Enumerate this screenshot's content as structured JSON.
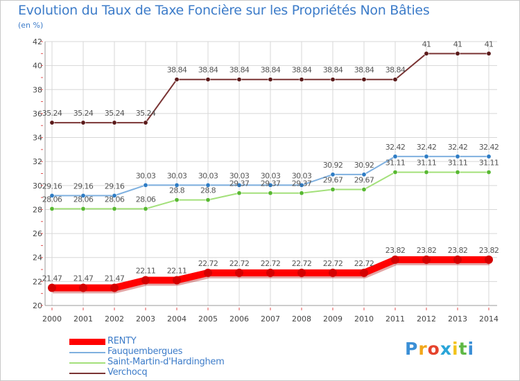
{
  "header": {
    "title": "Evolution du Taux de Taxe Foncière sur les Propriétés Non Bâties",
    "unit": "(en %)"
  },
  "logo": {
    "letters": [
      "P",
      "r",
      "o",
      "x",
      "i",
      "t",
      "i"
    ],
    "colors": [
      "#3b8fd6",
      "#f2a71b",
      "#e5432d",
      "#2aa5d8",
      "#f2c31b",
      "#5fb845",
      "#3b8fd6"
    ]
  },
  "chart_data": {
    "type": "line",
    "title": "Evolution du Taux de Taxe Foncière sur les Propriétés Non Bâties",
    "ylabel": "(en %)",
    "xlabel": "",
    "categories": [
      "2000",
      "2001",
      "2002",
      "2003",
      "2004",
      "2005",
      "2006",
      "2007",
      "2008",
      "2009",
      "2010",
      "2011",
      "2012",
      "2013",
      "2014"
    ],
    "ylim": [
      20,
      42
    ],
    "yticks": [
      "20",
      "22",
      "24",
      "26",
      "28",
      "30",
      "32",
      "34",
      "36",
      "38",
      "40",
      "42"
    ],
    "grid": true,
    "legend_position": "bottom-left",
    "series": [
      {
        "name": "RENTY",
        "color": "#ff0000",
        "marker_color": "#d40000",
        "emphasis": true,
        "values": [
          21.47,
          21.47,
          21.47,
          22.11,
          22.11,
          22.72,
          22.72,
          22.72,
          22.72,
          22.72,
          22.72,
          23.82,
          23.82,
          23.82,
          23.82
        ],
        "labels": [
          "21.47",
          "21.47",
          "21.47",
          "22.11",
          "22.11",
          "22.72",
          "22.72",
          "22.72",
          "22.72",
          "22.72",
          "22.72",
          "23.82",
          "23.82",
          "23.82",
          "23.82"
        ]
      },
      {
        "name": "Fauquembergues",
        "color": "#7fb0df",
        "marker_color": "#2e7cc4",
        "emphasis": false,
        "values": [
          29.16,
          29.16,
          29.16,
          30.03,
          30.03,
          30.03,
          30.03,
          30.03,
          30.03,
          30.92,
          30.92,
          32.42,
          32.42,
          32.42,
          32.42
        ],
        "labels": [
          "29.16",
          "29.16",
          "29.16",
          "30.03",
          "30.03",
          "30.03",
          "30.03",
          "30.03",
          "30.03",
          "30.92",
          "30.92",
          "32.42",
          "32.42",
          "32.42",
          "32.42"
        ]
      },
      {
        "name": "Saint-Martin-d'Hardinghem",
        "color": "#a3e07a",
        "marker_color": "#58b832",
        "emphasis": false,
        "values": [
          28.06,
          28.06,
          28.06,
          28.06,
          28.8,
          28.8,
          29.37,
          29.37,
          29.37,
          29.67,
          29.67,
          31.11,
          31.11,
          31.11,
          31.11
        ],
        "labels": [
          "28.06",
          "28.06",
          "28.06",
          "28.06",
          "28.8",
          "28.8",
          "29.37",
          "29.37",
          "29.37",
          "29.67",
          "29.67",
          "31.11",
          "31.11",
          "31.11",
          "31.11"
        ]
      },
      {
        "name": "Verchocq",
        "color": "#7a3434",
        "marker_color": "#5a1a1a",
        "emphasis": false,
        "values": [
          35.24,
          35.24,
          35.24,
          35.24,
          38.84,
          38.84,
          38.84,
          38.84,
          38.84,
          38.84,
          38.84,
          38.84,
          41,
          41,
          41
        ],
        "labels": [
          "35.24",
          "35.24",
          "35.24",
          "35.24",
          "38.84",
          "38.84",
          "38.84",
          "38.84",
          "38.84",
          "38.84",
          "38.84",
          "38.84",
          "41",
          "41",
          "41"
        ]
      }
    ]
  }
}
